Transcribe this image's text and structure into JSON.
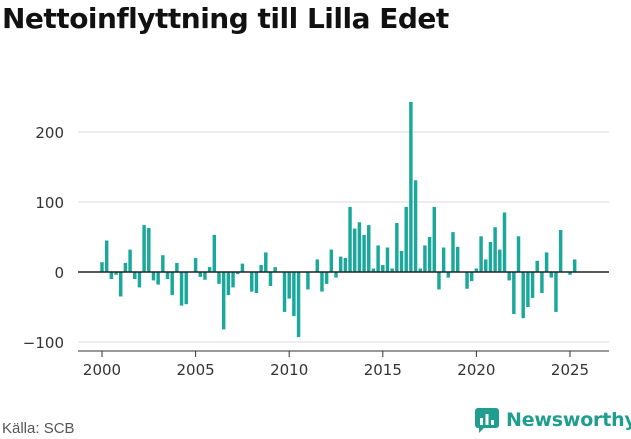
{
  "title": "Nettoinflyttning till Lilla Edet",
  "source": "Källa: SCB",
  "brand": {
    "name": "Newsworthy",
    "icon": "newsworthy-logo-icon",
    "color": "#1f9e8f"
  },
  "chart_data": {
    "type": "bar",
    "bar_color": "#1ba89c",
    "y_ticks": [
      -100,
      0,
      100,
      200
    ],
    "y_tick_labels": [
      "−100",
      "0",
      "100",
      "200"
    ],
    "x_ticks": [
      2000,
      2005,
      2010,
      2015,
      2020,
      2025
    ],
    "x_tick_labels": [
      "2000",
      "2005",
      "2010",
      "2015",
      "2020",
      "2025"
    ],
    "ylim": [
      -110,
      250
    ],
    "xlim": [
      1998.7,
      2026.5
    ],
    "grid": "horizontal",
    "x_start": 2000.0,
    "step": 0.25,
    "values": [
      14,
      45,
      -10,
      -4,
      -35,
      13,
      32,
      -10,
      -22,
      67,
      63,
      -12,
      -18,
      24,
      -10,
      -33,
      13,
      -48,
      -46,
      0,
      20,
      -7,
      -11,
      7,
      53,
      -17,
      -82,
      -33,
      -22,
      -3,
      12,
      0,
      -28,
      -30,
      10,
      28,
      -20,
      7,
      0,
      -57,
      -38,
      -63,
      -93,
      0,
      -25,
      0,
      18,
      -28,
      -17,
      32,
      -8,
      22,
      20,
      93,
      62,
      71,
      53,
      67,
      5,
      38,
      10,
      35,
      5,
      70,
      30,
      93,
      243,
      131,
      5,
      38,
      50,
      93,
      -25,
      35,
      -8,
      57,
      36,
      0,
      -24,
      -13,
      5,
      51,
      18,
      43,
      64,
      32,
      85,
      -12,
      -60,
      51,
      -66,
      -50,
      -37,
      16,
      -30,
      28,
      -8,
      -57,
      60,
      0,
      -4,
      18
    ]
  }
}
